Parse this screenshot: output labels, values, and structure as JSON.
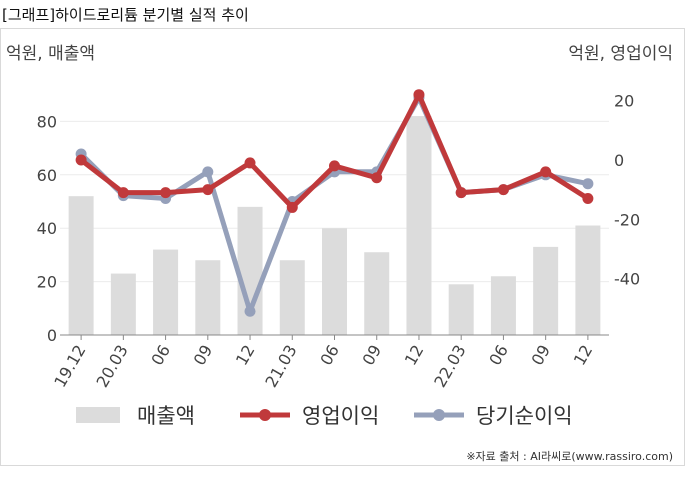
{
  "title": "[그래프]하이드로리튬 분기별 실적 추이",
  "source": "※자료 출처 : AI라씨로(www.rassiro.com)",
  "chart_data": {
    "type": "bar+line",
    "left_axis_label": "억원, 매출액",
    "right_axis_label": "억원, 영업이익",
    "categories": [
      "19.12",
      "20.03",
      "06",
      "09",
      "12",
      "21.03",
      "06",
      "09",
      "12",
      "22.03",
      "06",
      "09",
      "12"
    ],
    "left_ylim": [
      0,
      100
    ],
    "left_ticks": [
      0,
      20,
      40,
      60,
      80
    ],
    "right_ylim": [
      -59,
      31
    ],
    "right_ticks": [
      -40,
      -20,
      0,
      20
    ],
    "grid": true,
    "legend_position": "bottom",
    "series": [
      {
        "name": "매출액",
        "type": "bar",
        "axis": "left",
        "color": "#dcdcdc",
        "values": [
          52,
          23,
          32,
          28,
          48,
          28,
          40,
          31,
          82,
          19,
          22,
          33,
          41
        ]
      },
      {
        "name": "영업이익",
        "type": "line",
        "axis": "right",
        "color": "#c0393b",
        "values": [
          0,
          -11,
          -11,
          -10,
          -1,
          -16,
          -2,
          -6,
          22,
          -11,
          -10,
          -4,
          -13
        ]
      },
      {
        "name": "당기순이익",
        "type": "line",
        "axis": "right",
        "color": "#95a0ba",
        "values": [
          2,
          -12,
          -13,
          -4,
          -51,
          -14,
          -4,
          -4,
          21,
          -11,
          -10,
          -5,
          -8
        ]
      }
    ]
  }
}
